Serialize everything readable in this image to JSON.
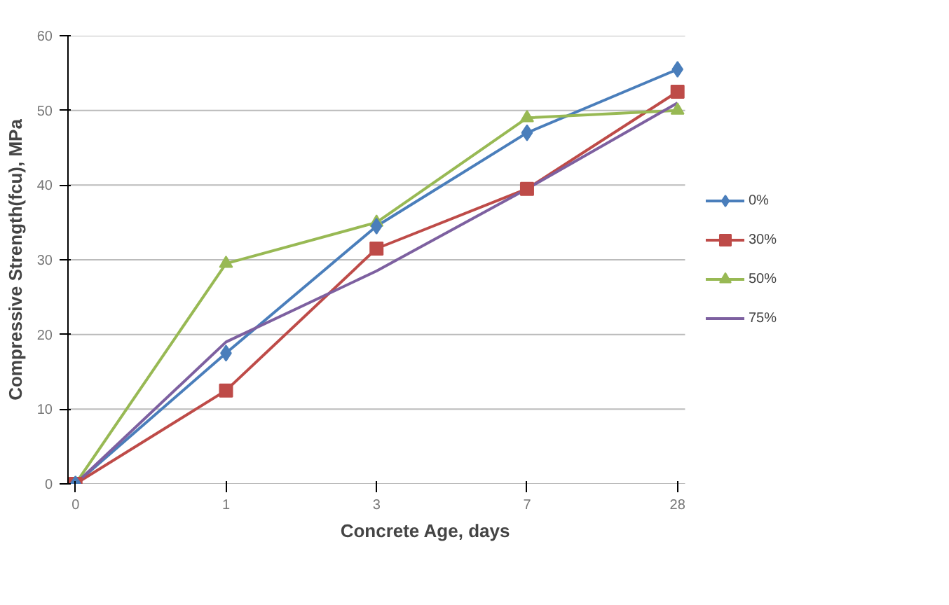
{
  "chart_data": {
    "type": "line",
    "xlabel": "Concrete Age, days",
    "ylabel": "Compressive Strength(fcu), MPa",
    "categories": [
      "0",
      "1",
      "3",
      "7",
      "28"
    ],
    "ylim": [
      0,
      60
    ],
    "yticks": [
      0,
      10,
      20,
      30,
      40,
      50,
      60
    ],
    "grid": "y",
    "legend": "right",
    "series": [
      {
        "name": "0%",
        "color": "#4a7ebb",
        "marker": "diamond",
        "values": [
          0,
          17.5,
          34.5,
          47,
          55.5
        ]
      },
      {
        "name": "30%",
        "color": "#be4b48",
        "marker": "square",
        "values": [
          0,
          12.5,
          31.5,
          39.5,
          52.5
        ]
      },
      {
        "name": "50%",
        "color": "#98b954",
        "marker": "triangle",
        "values": [
          0,
          29.5,
          35,
          49,
          50
        ]
      },
      {
        "name": "75%",
        "color": "#7d60a0",
        "marker": "none",
        "values": [
          0,
          19,
          28.5,
          39.5,
          51
        ]
      }
    ]
  }
}
